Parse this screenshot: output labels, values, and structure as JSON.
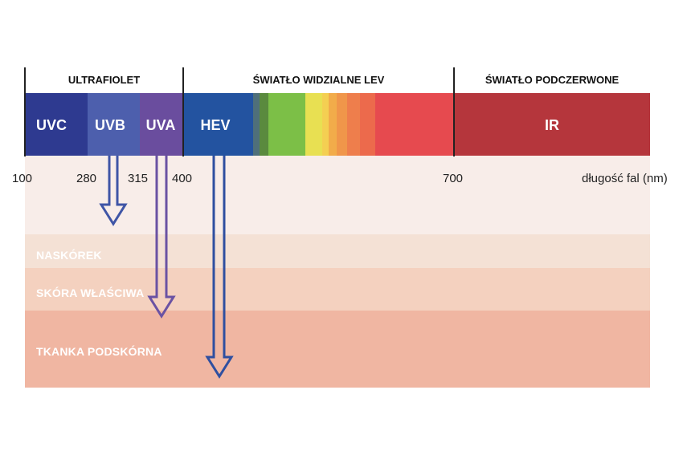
{
  "sections": {
    "uv_title": "ULTRAFIOLET",
    "visible_title": "ŚWIATŁO WIDZIALNE LEV",
    "ir_title": "ŚWIATŁO PODCZERWONE"
  },
  "bands": {
    "uvc": "UVC",
    "uvb": "UVB",
    "uva": "UVA",
    "hev": "HEV",
    "ir": "IR"
  },
  "ticks": {
    "t100": "100",
    "t280": "280",
    "t315": "315",
    "t400": "400",
    "t700": "700",
    "unit": "długość fal (nm)"
  },
  "layers": {
    "epidermis": "NASKÓREK",
    "dermis": "SKÓRA WŁAŚCIWA",
    "hypodermis": "TKANKA PODSKÓRNA"
  },
  "colors": {
    "uvc": "#2e3a90",
    "uvb": "#4d5fad",
    "uva": "#6a4d9e",
    "hev": "#2353a0",
    "ir": "#b5363c",
    "skin_surface": "#f8ede9",
    "epidermis": "#f4e1d5",
    "dermis": "#f4d1bf",
    "hypodermis": "#f0b6a2",
    "arrow_uvb": "#3f55a6",
    "arrow_uva": "#6a52a3",
    "arrow_hev": "#2f4fa0"
  }
}
